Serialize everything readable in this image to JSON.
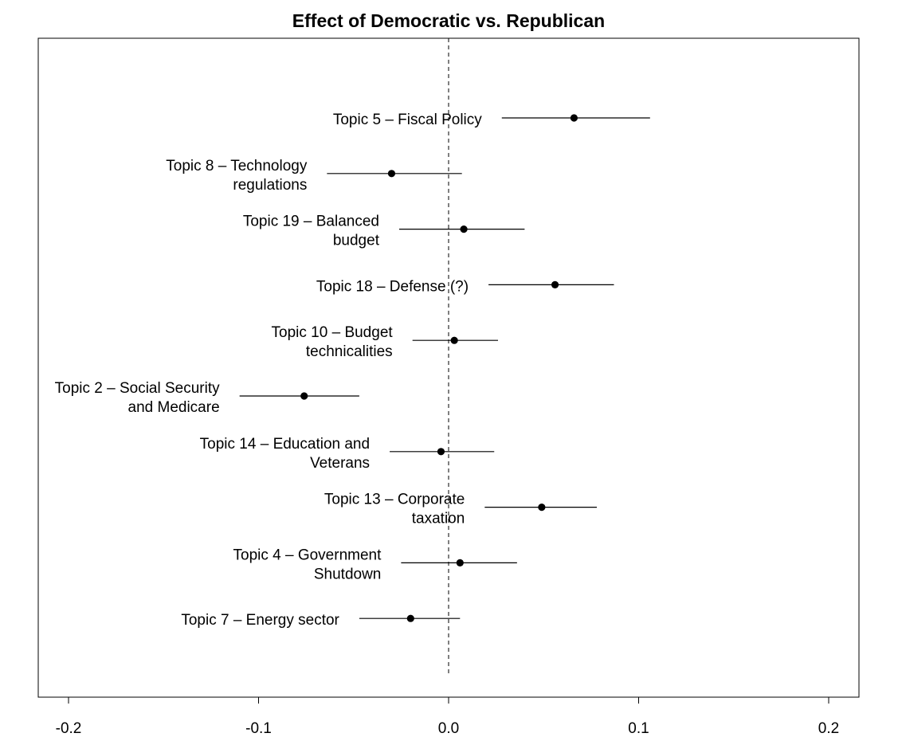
{
  "chart_data": {
    "type": "scatter",
    "title": "Effect of Democratic vs. Republican",
    "xlabel": "",
    "ylabel": "",
    "xlim": [
      -0.2,
      0.2
    ],
    "x_ticks": [
      -0.2,
      -0.1,
      0.0,
      0.1,
      0.2
    ],
    "x_tick_labels": [
      "-0.2",
      "-0.1",
      "0.0",
      "0.1",
      "0.2"
    ],
    "reference_line": {
      "x": 0,
      "style": "dashed"
    },
    "grid": false,
    "legend": "none",
    "point_color": "#000000",
    "points": [
      {
        "label": [
          "Topic 5 – Fiscal Policy"
        ],
        "estimate": 0.066,
        "ci": [
          0.028,
          0.106
        ]
      },
      {
        "label": [
          "Topic 8 – Technology",
          "regulations"
        ],
        "estimate": -0.03,
        "ci": [
          -0.064,
          0.007
        ]
      },
      {
        "label": [
          "Topic 19 – Balanced",
          "budget"
        ],
        "estimate": 0.008,
        "ci": [
          -0.026,
          0.04
        ]
      },
      {
        "label": [
          "Topic 18 – Defense (?)"
        ],
        "estimate": 0.056,
        "ci": [
          0.021,
          0.087
        ]
      },
      {
        "label": [
          "Topic 10 – Budget",
          "technicalities"
        ],
        "estimate": 0.003,
        "ci": [
          -0.019,
          0.026
        ]
      },
      {
        "label": [
          "Topic 2 – Social Security",
          "and Medicare"
        ],
        "estimate": -0.076,
        "ci": [
          -0.11,
          -0.047
        ]
      },
      {
        "label": [
          "Topic 14 – Education and",
          "Veterans"
        ],
        "estimate": -0.004,
        "ci": [
          -0.031,
          0.024
        ]
      },
      {
        "label": [
          "Topic 13 – Corporate",
          "taxation"
        ],
        "estimate": 0.049,
        "ci": [
          0.019,
          0.078
        ]
      },
      {
        "label": [
          "Topic 4 – Government",
          "Shutdown"
        ],
        "estimate": 0.006,
        "ci": [
          -0.025,
          0.036
        ]
      },
      {
        "label": [
          "Topic 7 – Energy sector"
        ],
        "estimate": -0.02,
        "ci": [
          -0.047,
          0.006
        ]
      }
    ]
  }
}
